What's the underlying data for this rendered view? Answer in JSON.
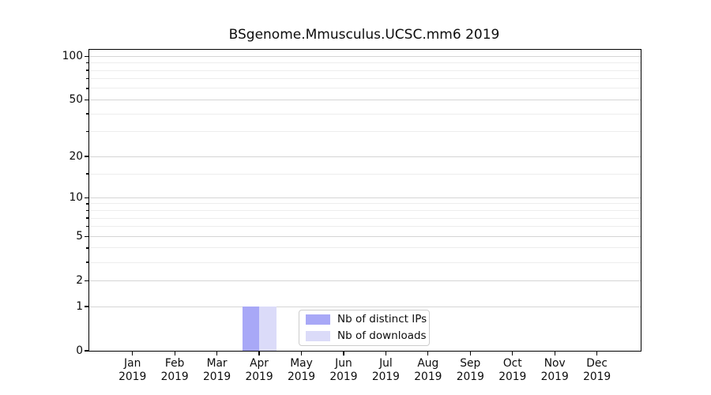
{
  "figure": {
    "title": "BSgenome.Mmusculus.UCSC.mm6 2019"
  },
  "chart_data": {
    "type": "bar",
    "title": "BSgenome.Mmusculus.UCSC.mm6 2019",
    "categories": [
      "Jan 2019",
      "Feb 2019",
      "Mar 2019",
      "Apr 2019",
      "May 2019",
      "Jun 2019",
      "Jul 2019",
      "Aug 2019",
      "Sep 2019",
      "Oct 2019",
      "Nov 2019",
      "Dec 2019"
    ],
    "series": [
      {
        "name": "Nb of distinct IPs",
        "color": "#a8a8f7",
        "values": [
          0,
          0,
          0,
          1,
          0,
          0,
          0,
          0,
          0,
          0,
          0,
          0
        ]
      },
      {
        "name": "Nb of downloads",
        "color": "#dbdbf9",
        "values": [
          0,
          0,
          0,
          1,
          0,
          0,
          0,
          0,
          0,
          0,
          0,
          0
        ]
      }
    ],
    "yscale": "log1p",
    "ylim": [
      0,
      111
    ],
    "yticks": [
      0,
      1,
      2,
      5,
      10,
      20,
      50,
      100
    ],
    "minor_yticks": [
      3,
      4,
      6,
      7,
      8,
      9,
      15,
      30,
      40,
      60,
      70,
      80,
      90
    ],
    "grid": "horizontal-major-and-minor",
    "legend_position": "inside-bottom-center"
  },
  "colors": {
    "background": "#ffffff",
    "spine": "#000000",
    "text": "#0d0d0d",
    "grid_major": "#d5d5d5",
    "grid_minor": "#ededed",
    "legend_bg": "#ffffff",
    "legend_border": "#cccccc"
  }
}
